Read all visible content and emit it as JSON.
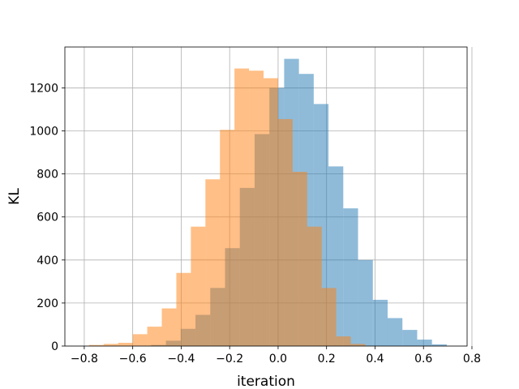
{
  "chart_data": {
    "type": "bar",
    "subtype": "overlaid-histogram",
    "title": "",
    "xlabel": "iteration",
    "ylabel": "KL",
    "xlim": [
      -0.88,
      0.78
    ],
    "ylim": [
      0,
      1390
    ],
    "xticks": [
      -0.8,
      -0.6,
      -0.4,
      -0.2,
      0.0,
      0.2,
      0.4,
      0.6,
      0.8
    ],
    "xtick_labels": [
      "−0.8",
      "−0.6",
      "−0.4",
      "−0.2",
      "0.0",
      "0.2",
      "0.4",
      "0.6",
      "0.8"
    ],
    "yticks": [
      0,
      200,
      400,
      600,
      800,
      1000,
      1200
    ],
    "ytick_labels": [
      "0",
      "200",
      "400",
      "600",
      "800",
      "1000",
      "1200"
    ],
    "grid": true,
    "legend": "none",
    "series": [
      {
        "color": "#1f77b4",
        "alpha": 0.5,
        "bins": [
          [
            -0.524,
            -0.463
          ],
          [
            -0.463,
            -0.402
          ],
          [
            -0.402,
            -0.341
          ],
          [
            -0.341,
            -0.28
          ],
          [
            -0.28,
            -0.219
          ],
          [
            -0.219,
            -0.158
          ],
          [
            -0.158,
            -0.097
          ],
          [
            -0.097,
            -0.036
          ],
          [
            -0.036,
            0.025
          ],
          [
            0.025,
            0.086
          ],
          [
            0.086,
            0.147
          ],
          [
            0.147,
            0.208
          ],
          [
            0.208,
            0.269
          ],
          [
            0.269,
            0.33
          ],
          [
            0.33,
            0.391
          ],
          [
            0.391,
            0.452
          ],
          [
            0.452,
            0.513
          ],
          [
            0.513,
            0.574
          ],
          [
            0.574,
            0.635
          ],
          [
            0.635,
            0.696
          ]
        ],
        "values": [
          5,
          25,
          80,
          145,
          270,
          455,
          735,
          985,
          1200,
          1335,
          1265,
          1125,
          835,
          640,
          400,
          215,
          130,
          75,
          30,
          8
        ]
      },
      {
        "color": "#ff7f0e",
        "alpha": 0.5,
        "bins": [
          [
            -0.78,
            -0.72
          ],
          [
            -0.72,
            -0.66
          ],
          [
            -0.66,
            -0.6
          ],
          [
            -0.6,
            -0.54
          ],
          [
            -0.54,
            -0.48
          ],
          [
            -0.48,
            -0.42
          ],
          [
            -0.42,
            -0.36
          ],
          [
            -0.36,
            -0.3
          ],
          [
            -0.3,
            -0.24
          ],
          [
            -0.24,
            -0.18
          ],
          [
            -0.18,
            -0.12
          ],
          [
            -0.12,
            -0.06
          ],
          [
            -0.06,
            0.0
          ],
          [
            0.0,
            0.06
          ],
          [
            0.06,
            0.12
          ],
          [
            0.12,
            0.18
          ],
          [
            0.18,
            0.24
          ],
          [
            0.24,
            0.3
          ],
          [
            0.3,
            0.36
          ]
        ],
        "values": [
          5,
          10,
          15,
          55,
          90,
          175,
          340,
          555,
          775,
          1005,
          1290,
          1280,
          1245,
          1055,
          810,
          555,
          270,
          45,
          10
        ]
      }
    ]
  }
}
